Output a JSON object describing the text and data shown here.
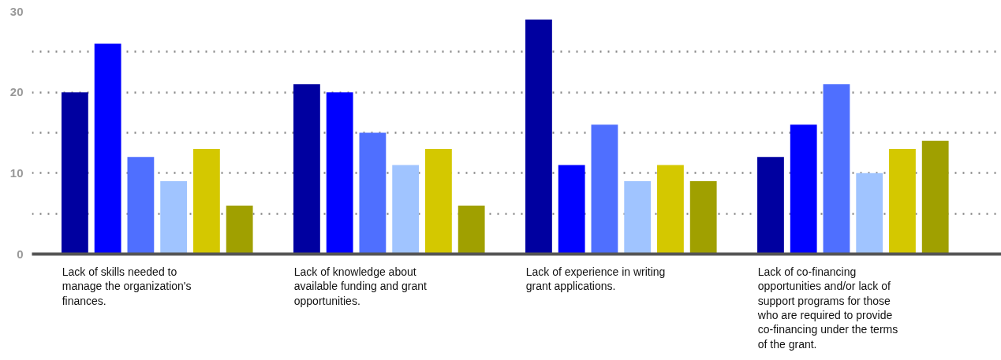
{
  "chart_data": {
    "type": "bar",
    "categories": [
      "Lack of skills needed to manage the organization's finances.",
      "Lack of knowledge about available funding and grant opportunities.",
      "Lack of experience in writing grant applications.",
      "Lack of co-financing opportunities and/or lack of support programs for those who are required to provide co-financing under the terms of the grant."
    ],
    "series": [
      {
        "color": "#0000a0",
        "values": [
          20,
          21,
          29,
          12
        ]
      },
      {
        "color": "#0000ff",
        "values": [
          26,
          20,
          11,
          16
        ]
      },
      {
        "color": "#4f6fff",
        "values": [
          12,
          15,
          16,
          21
        ]
      },
      {
        "color": "#a0c4ff",
        "values": [
          9,
          11,
          9,
          10
        ]
      },
      {
        "color": "#d4c800",
        "values": [
          13,
          13,
          11,
          13
        ]
      },
      {
        "color": "#a0a000",
        "values": [
          6,
          6,
          9,
          14
        ]
      }
    ],
    "ylim": [
      0,
      30
    ],
    "yticks": [
      0,
      {
        "value": 5,
        "label": null
      },
      10,
      {
        "value": 15,
        "label": null
      },
      20,
      {
        "value": 25,
        "label": null
      },
      30
    ],
    "grid": "y"
  }
}
